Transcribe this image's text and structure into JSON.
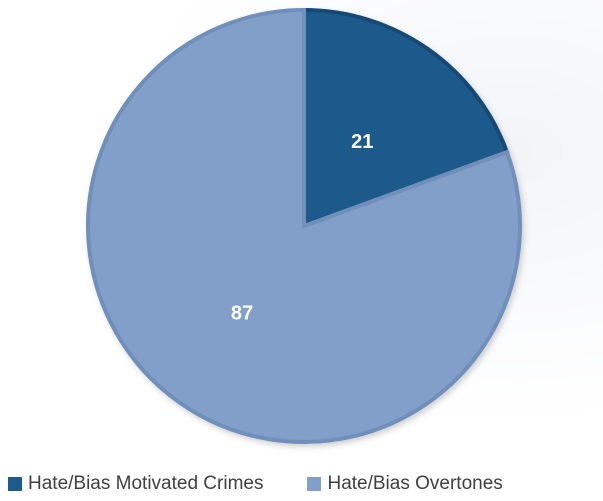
{
  "chart_data": {
    "type": "pie",
    "title": "",
    "slices": [
      {
        "name": "Hate/Bias Motivated Crimes",
        "value": 21,
        "label": "21",
        "color": "#1f5a8c"
      },
      {
        "name": "Hate/Bias Overtones",
        "value": 87,
        "label": "87",
        "color": "#819fc8"
      }
    ],
    "legend_position": "bottom"
  }
}
